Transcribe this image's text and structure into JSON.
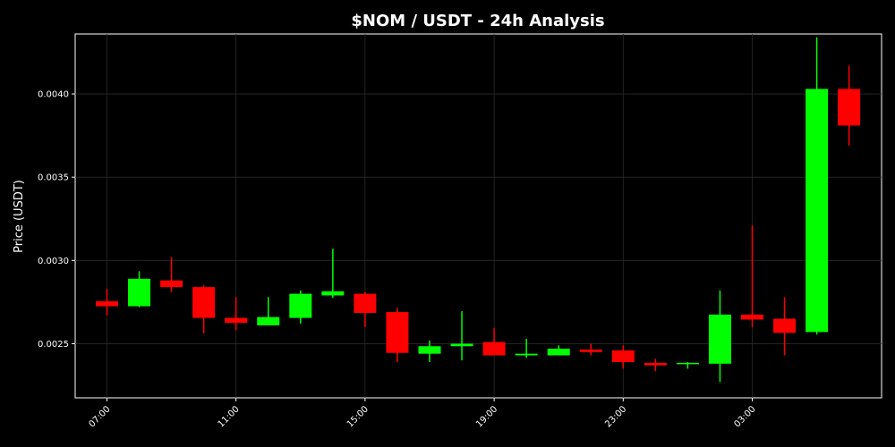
{
  "chart_data": {
    "type": "candlestick",
    "title": "$NOM / USDT - 24h Analysis",
    "xlabel": "",
    "ylabel": "Price (USDT)",
    "ylim": [
      0.002175,
      0.00436
    ],
    "x_ticks": [
      "07:00",
      "11:00",
      "15:00",
      "19:00",
      "23:00",
      "03:00"
    ],
    "y_ticks": [
      "0.0025",
      "0.0030",
      "0.0035",
      "0.0040"
    ],
    "grid": true,
    "colors": {
      "up": "#00ff00",
      "down": "#ff0000",
      "background": "#000000",
      "text": "#ffffff"
    },
    "candles": [
      {
        "time": "07:00",
        "open": 0.002755,
        "high": 0.00283,
        "low": 0.00267,
        "close": 0.002725
      },
      {
        "time": "08:00",
        "open": 0.002725,
        "high": 0.002935,
        "low": 0.00272,
        "close": 0.00289
      },
      {
        "time": "09:00",
        "open": 0.00288,
        "high": 0.00302,
        "low": 0.00281,
        "close": 0.00284
      },
      {
        "time": "10:00",
        "open": 0.00284,
        "high": 0.00285,
        "low": 0.00256,
        "close": 0.002655
      },
      {
        "time": "11:00",
        "open": 0.002655,
        "high": 0.00278,
        "low": 0.00258,
        "close": 0.002625
      },
      {
        "time": "12:00",
        "open": 0.00261,
        "high": 0.00278,
        "low": 0.00261,
        "close": 0.00266
      },
      {
        "time": "13:00",
        "open": 0.002655,
        "high": 0.00282,
        "low": 0.00262,
        "close": 0.0028
      },
      {
        "time": "14:00",
        "open": 0.00279,
        "high": 0.00307,
        "low": 0.002775,
        "close": 0.002815
      },
      {
        "time": "15:00",
        "open": 0.0028,
        "high": 0.00281,
        "low": 0.0026,
        "close": 0.002685
      },
      {
        "time": "16:00",
        "open": 0.00269,
        "high": 0.002715,
        "low": 0.00239,
        "close": 0.002445
      },
      {
        "time": "17:00",
        "open": 0.00244,
        "high": 0.00252,
        "low": 0.00239,
        "close": 0.002485
      },
      {
        "time": "18:00",
        "open": 0.002485,
        "high": 0.002695,
        "low": 0.0024,
        "close": 0.0025
      },
      {
        "time": "19:00",
        "open": 0.00251,
        "high": 0.002595,
        "low": 0.00243,
        "close": 0.00243
      },
      {
        "time": "20:00",
        "open": 0.00243,
        "high": 0.00253,
        "low": 0.002415,
        "close": 0.00244
      },
      {
        "time": "21:00",
        "open": 0.00243,
        "high": 0.00249,
        "low": 0.00243,
        "close": 0.00247
      },
      {
        "time": "22:00",
        "open": 0.002465,
        "high": 0.0025,
        "low": 0.00243,
        "close": 0.00245
      },
      {
        "time": "23:00",
        "open": 0.00246,
        "high": 0.00249,
        "low": 0.00235,
        "close": 0.00239
      },
      {
        "time": "00:00",
        "open": 0.002385,
        "high": 0.00241,
        "low": 0.002335,
        "close": 0.00237
      },
      {
        "time": "01:00",
        "open": 0.00238,
        "high": 0.00239,
        "low": 0.00235,
        "close": 0.002385
      },
      {
        "time": "02:00",
        "open": 0.00238,
        "high": 0.00282,
        "low": 0.00227,
        "close": 0.002675
      },
      {
        "time": "03:00",
        "open": 0.002675,
        "high": 0.00321,
        "low": 0.0026,
        "close": 0.002645
      },
      {
        "time": "04:00",
        "open": 0.00265,
        "high": 0.00278,
        "low": 0.00243,
        "close": 0.002565
      },
      {
        "time": "05:00",
        "open": 0.00257,
        "high": 0.00434,
        "low": 0.002555,
        "close": 0.00403
      },
      {
        "time": "06:00",
        "open": 0.00403,
        "high": 0.00417,
        "low": 0.00369,
        "close": 0.00381
      }
    ]
  }
}
